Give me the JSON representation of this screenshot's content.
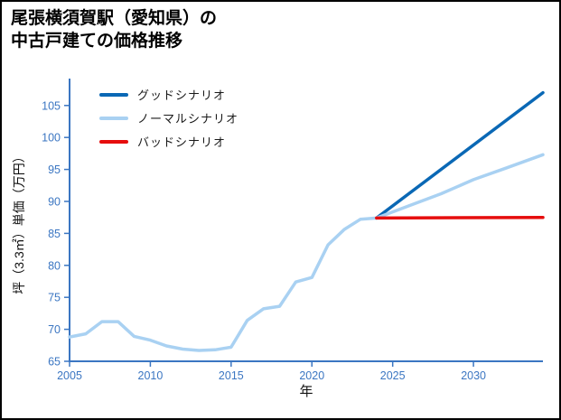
{
  "page": {
    "title_lines": [
      "尾張横須賀駅（愛知県）の",
      "中古戸建ての価格推移"
    ]
  },
  "chart_data": {
    "type": "line",
    "title": "尾張横須賀駅（愛知県）の中古戸建ての価格推移",
    "xlabel": "年",
    "ylabel": "坪（3.3㎡）単価（万円）",
    "xlim": [
      2005,
      2034.3
    ],
    "ylim": [
      65,
      108.5
    ],
    "xticks": [
      2005,
      2010,
      2015,
      2020,
      2025,
      2030
    ],
    "yticks": [
      65,
      70,
      75,
      80,
      85,
      90,
      95,
      100,
      105
    ],
    "grid": false,
    "legend_position": "upper-left",
    "axis_color": "#3b76c2",
    "tick_label_color": "#3b76c2",
    "axis_title_color": "#111111",
    "series": [
      {
        "key": "good",
        "name": "グッドシナリオ",
        "color": "#0a68b5",
        "width": 3.5,
        "x": [
          2024,
          2034.3
        ],
        "y": [
          87.4,
          107.0
        ]
      },
      {
        "key": "normal",
        "name": "ノーマルシナリオ",
        "color": "#a9d1f2",
        "width": 3.5,
        "x": [
          2005,
          2006,
          2007,
          2008,
          2009,
          2010,
          2011,
          2012,
          2013,
          2014,
          2015,
          2016,
          2017,
          2018,
          2019,
          2020,
          2021,
          2022,
          2023,
          2024,
          2026,
          2028,
          2030,
          2032,
          2034.3
        ],
        "y": [
          68.8,
          69.3,
          71.2,
          71.2,
          68.9,
          68.3,
          67.4,
          66.9,
          66.7,
          66.8,
          67.2,
          71.4,
          73.2,
          73.6,
          77.4,
          78.1,
          83.2,
          85.6,
          87.2,
          87.4,
          89.3,
          91.2,
          93.4,
          95.2,
          97.3
        ]
      },
      {
        "key": "bad",
        "name": "バッドシナリオ",
        "color": "#e60d0d",
        "width": 3.5,
        "x": [
          2024,
          2034.3
        ],
        "y": [
          87.4,
          87.5
        ]
      }
    ]
  }
}
